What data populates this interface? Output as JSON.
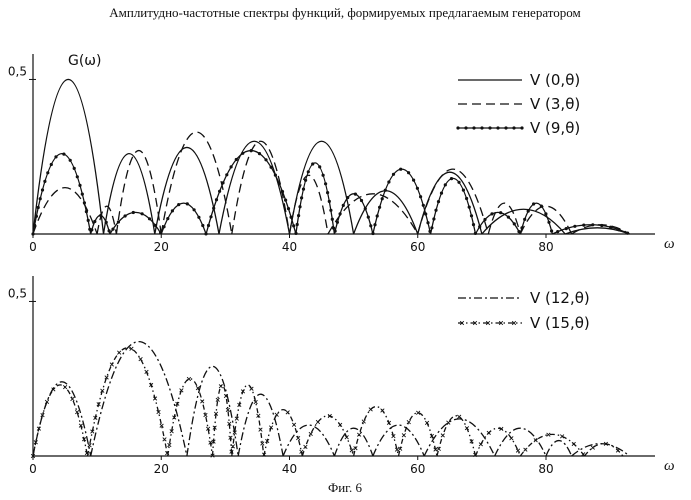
{
  "figure": {
    "title": "Амплитудно-частотные спектры функций, формируемых предлагаемым генератором",
    "caption": "Фиг. 6",
    "ink_color": "#111111",
    "background": "#ffffff"
  },
  "chart_data": [
    {
      "type": "line",
      "title": "",
      "ylabel": "G(ω)",
      "xlabel": "ω",
      "xlim": [
        0,
        97
      ],
      "ylim": [
        0,
        0.55
      ],
      "x_ticks": [
        0,
        20,
        40,
        60,
        80
      ],
      "y_ticks": [
        0.5
      ],
      "y_tick_labels": [
        "0,5"
      ],
      "legend": "top-right",
      "series": [
        {
          "name": "V (0,θ)",
          "style": "solid",
          "arches": [
            [
              0,
              0.5,
              11
            ],
            [
              11,
              0.26,
              19
            ],
            [
              19,
              0.28,
              29
            ],
            [
              29,
              0.3,
              40
            ],
            [
              40,
              0.3,
              50
            ],
            [
              50,
              0.14,
              60
            ],
            [
              60,
              0.2,
              70
            ],
            [
              70,
              0.08,
              83
            ],
            [
              83,
              0.02,
              93
            ]
          ]
        },
        {
          "name": "V (3,θ)",
          "style": "dashed",
          "arches": [
            [
              0,
              0.15,
              10
            ],
            [
              10,
              0.09,
              13
            ],
            [
              13,
              0.27,
              20
            ],
            [
              20,
              0.33,
              31
            ],
            [
              31,
              0.3,
              40
            ],
            [
              40,
              0.19,
              46
            ],
            [
              46,
              0.13,
              60
            ],
            [
              60,
              0.21,
              71
            ],
            [
              71,
              0.1,
              76
            ],
            [
              76,
              0.09,
              84
            ],
            [
              84,
              0.03,
              93
            ]
          ]
        },
        {
          "name": "V (9,θ)",
          "style": "dot-line",
          "arches": [
            [
              0,
              0.26,
              9
            ],
            [
              9,
              0.06,
              12
            ],
            [
              12,
              0.07,
              20
            ],
            [
              20,
              0.1,
              27
            ],
            [
              27,
              0.27,
              41
            ],
            [
              41,
              0.23,
              47
            ],
            [
              47,
              0.13,
              53
            ],
            [
              53,
              0.21,
              62
            ],
            [
              62,
              0.18,
              69
            ],
            [
              69,
              0.07,
              76
            ],
            [
              76,
              0.1,
              81
            ],
            [
              81,
              0.03,
              93
            ]
          ]
        }
      ]
    },
    {
      "type": "line",
      "title": "",
      "ylabel": "",
      "xlabel": "ω",
      "xlim": [
        0,
        97
      ],
      "ylim": [
        0,
        0.55
      ],
      "x_ticks": [
        0,
        20,
        40,
        60,
        80
      ],
      "y_ticks": [
        0.5
      ],
      "y_tick_labels": [
        "0,5"
      ],
      "legend": "top-right",
      "series": [
        {
          "name": "V (12,θ)",
          "style": "dash-dot",
          "arches": [
            [
              0,
              0.24,
              9
            ],
            [
              9,
              0.37,
              24
            ],
            [
              24,
              0.29,
              32
            ],
            [
              32,
              0.2,
              39
            ],
            [
              39,
              0.1,
              47
            ],
            [
              47,
              0.09,
              53
            ],
            [
              53,
              0.1,
              61
            ],
            [
              61,
              0.12,
              72
            ],
            [
              72,
              0.09,
              80
            ],
            [
              80,
              0.05,
              84
            ],
            [
              84,
              0.04,
              93
            ]
          ]
        },
        {
          "name": "V (15,θ)",
          "style": "dash-dot-x",
          "arches": [
            [
              0,
              0.23,
              8.5
            ],
            [
              8.5,
              0.35,
              21
            ],
            [
              21,
              0.25,
              28
            ],
            [
              28,
              0.23,
              31
            ],
            [
              31,
              0.23,
              36
            ],
            [
              36,
              0.15,
              42
            ],
            [
              42,
              0.13,
              50
            ],
            [
              50,
              0.16,
              57
            ],
            [
              57,
              0.14,
              63
            ],
            [
              63,
              0.13,
              69
            ],
            [
              69,
              0.09,
              76
            ],
            [
              76,
              0.07,
              86
            ],
            [
              86,
              0.04,
              92
            ]
          ]
        }
      ]
    }
  ]
}
